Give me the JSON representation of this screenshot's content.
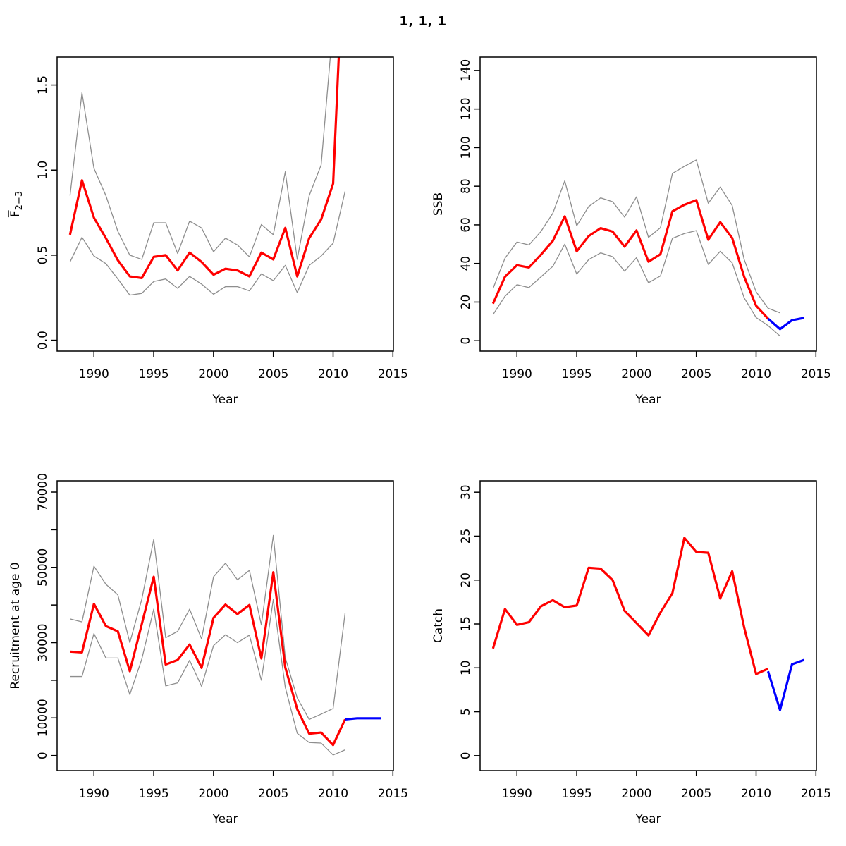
{
  "page": {
    "title": "1, 1, 1",
    "background": "#ffffff"
  },
  "colors": {
    "red": "#ff0000",
    "blue": "#0000ff",
    "gray": "#8e8e8e",
    "frame": "#000000",
    "text": "#000000"
  },
  "chart_data": [
    {
      "id": "fbar",
      "type": "line",
      "title": "",
      "xlabel": "Year",
      "ylabel": "F̅2−3",
      "ylabel_parts": {
        "main": "F",
        "overline": true,
        "sub": "2−3"
      },
      "xlim": [
        1986.92,
        2015.04
      ],
      "ylim": [
        -0.064,
        1.664
      ],
      "xticks": [
        1990,
        1995,
        2000,
        2005,
        2010,
        2015
      ],
      "xtick_labels": [
        "1990",
        "1995",
        "2000",
        "2005",
        "2010",
        "2015"
      ],
      "yticks": [
        0.0,
        0.5,
        1.0,
        1.5
      ],
      "ytick_labels": [
        "0.0",
        "0.5",
        "1.0",
        "1.5"
      ],
      "grid": false,
      "legend": null,
      "series": [
        {
          "name": "upper-ci",
          "role": "confidence-upper",
          "color_key": "gray",
          "width": 1.3,
          "start_year": 1988,
          "values": [
            0.85,
            1.455,
            1.01,
            0.85,
            0.64,
            0.5,
            0.475,
            0.69,
            0.69,
            0.51,
            0.7,
            0.66,
            0.52,
            0.6,
            0.56,
            0.49,
            0.68,
            0.62,
            0.99,
            0.475,
            0.85,
            1.03,
            1.86,
            4.0
          ]
        },
        {
          "name": "lower-ci",
          "role": "confidence-lower",
          "color_key": "gray",
          "width": 1.3,
          "start_year": 1988,
          "values": [
            0.46,
            0.605,
            0.495,
            0.45,
            0.36,
            0.265,
            0.275,
            0.345,
            0.36,
            0.305,
            0.375,
            0.33,
            0.27,
            0.315,
            0.315,
            0.29,
            0.39,
            0.35,
            0.44,
            0.28,
            0.44,
            0.495,
            0.57,
            0.875
          ]
        },
        {
          "name": "estimate",
          "role": "estimate",
          "color_key": "red",
          "width": 3.2,
          "start_year": 1988,
          "values": [
            0.62,
            0.94,
            0.72,
            0.6,
            0.47,
            0.375,
            0.365,
            0.49,
            0.5,
            0.41,
            0.515,
            0.46,
            0.385,
            0.42,
            0.41,
            0.375,
            0.515,
            0.475,
            0.66,
            0.375,
            0.6,
            0.71,
            0.92,
            2.5
          ]
        }
      ]
    },
    {
      "id": "ssb",
      "type": "line",
      "title": "",
      "xlabel": "Year",
      "ylabel": "SSB",
      "xlim": [
        1986.92,
        2015.04
      ],
      "ylim": [
        -5.4,
        146.9
      ],
      "xticks": [
        1990,
        1995,
        2000,
        2005,
        2010,
        2015
      ],
      "xtick_labels": [
        "1990",
        "1995",
        "2000",
        "2005",
        "2010",
        "2015"
      ],
      "yticks": [
        0,
        20,
        40,
        60,
        80,
        100,
        120,
        140
      ],
      "ytick_labels": [
        "0",
        "20",
        "40",
        "60",
        "80",
        "100",
        "120",
        "140"
      ],
      "grid": false,
      "legend": null,
      "series": [
        {
          "name": "upper-ci",
          "role": "confidence-upper",
          "color_key": "gray",
          "width": 1.3,
          "start_year": 1988,
          "values": [
            27,
            42.7,
            51.1,
            49.6,
            56.5,
            66,
            82.8,
            59.5,
            69.5,
            74,
            72,
            64,
            74.5,
            53.5,
            58.5,
            86.6,
            90.3,
            93.6,
            71.2,
            79.6,
            70,
            42.1,
            25.3,
            16.8,
            14.4
          ]
        },
        {
          "name": "lower-ci",
          "role": "confidence-lower",
          "color_key": "gray",
          "width": 1.3,
          "start_year": 1988,
          "values": [
            13.5,
            23,
            29,
            27.5,
            33,
            38.5,
            50,
            34.5,
            42,
            45.5,
            43.5,
            36,
            43,
            30,
            33.5,
            53,
            55.5,
            57,
            39.5,
            46.3,
            40.3,
            22.2,
            12,
            7.8,
            2.4
          ]
        },
        {
          "name": "estimate",
          "role": "estimate",
          "color_key": "red",
          "width": 3.2,
          "start_year": 1988,
          "values": [
            19.2,
            33.1,
            39.1,
            37.9,
            44.5,
            51.7,
            64.4,
            46.3,
            54.2,
            58.3,
            56.5,
            48.7,
            57.1,
            40.9,
            44.8,
            67,
            70.4,
            72.8,
            52.3,
            61.4,
            53.2,
            33.1,
            18.1,
            11.4
          ]
        },
        {
          "name": "forecast",
          "role": "forecast",
          "color_key": "blue",
          "width": 3.2,
          "start_year": 2011,
          "values": [
            11.4,
            6.0,
            10.6,
            11.8
          ]
        }
      ]
    },
    {
      "id": "recruitment",
      "type": "line",
      "title": "",
      "xlabel": "Year",
      "ylabel": "Recruitment at age 0",
      "xlim": [
        1986.92,
        2015.04
      ],
      "ylim": [
        -4000,
        73000
      ],
      "xticks": [
        1990,
        1995,
        2000,
        2005,
        2010,
        2015
      ],
      "xtick_labels": [
        "1990",
        "1995",
        "2000",
        "2005",
        "2010",
        "2015"
      ],
      "yticks": [
        0,
        10000,
        20000,
        30000,
        40000,
        50000,
        60000,
        70000
      ],
      "ytick_labels": [
        "0",
        "10000",
        "",
        "30000",
        "",
        "50000",
        "",
        "70000"
      ],
      "grid": false,
      "legend": null,
      "series": [
        {
          "name": "upper-ci",
          "role": "confidence-upper",
          "color_key": "gray",
          "width": 1.3,
          "start_year": 1988,
          "values": [
            36300,
            35500,
            50300,
            45500,
            42700,
            30000,
            41500,
            57400,
            31300,
            33000,
            38900,
            31000,
            47500,
            51100,
            46700,
            49200,
            34700,
            58500,
            26000,
            15300,
            9600,
            11000,
            12500,
            37800
          ]
        },
        {
          "name": "lower-ci",
          "role": "confidence-lower",
          "color_key": "gray",
          "width": 1.3,
          "start_year": 1988,
          "values": [
            21000,
            21000,
            32400,
            25900,
            25900,
            16200,
            25600,
            38900,
            18500,
            19300,
            25300,
            18400,
            29200,
            32100,
            30000,
            32000,
            20000,
            41500,
            18100,
            5900,
            3450,
            3300,
            130,
            1500
          ]
        },
        {
          "name": "estimate",
          "role": "estimate",
          "color_key": "red",
          "width": 3.2,
          "start_year": 1988,
          "values": [
            27600,
            27400,
            40300,
            34400,
            33000,
            22400,
            34900,
            47500,
            24200,
            25400,
            29500,
            23300,
            36600,
            40100,
            37600,
            40000,
            25800,
            48700,
            23400,
            12300,
            5800,
            6100,
            2800,
            9600
          ]
        },
        {
          "name": "forecast",
          "role": "forecast",
          "color_key": "blue",
          "width": 3.2,
          "start_year": 2011,
          "values": [
            9600,
            9900,
            9900,
            9900
          ]
        }
      ]
    },
    {
      "id": "catch",
      "type": "line",
      "title": "",
      "xlabel": "Year",
      "ylabel": "Catch",
      "xlim": [
        1986.92,
        2015.04
      ],
      "ylim": [
        -1.7,
        31.3
      ],
      "xticks": [
        1990,
        1995,
        2000,
        2005,
        2010,
        2015
      ],
      "xtick_labels": [
        "1990",
        "1995",
        "2000",
        "2005",
        "2010",
        "2015"
      ],
      "yticks": [
        0,
        5,
        10,
        15,
        20,
        25,
        30
      ],
      "ytick_labels": [
        "0",
        "5",
        "10",
        "15",
        "20",
        "25",
        "30"
      ],
      "grid": false,
      "legend": null,
      "series": [
        {
          "name": "estimate",
          "role": "estimate",
          "color_key": "red",
          "width": 3.2,
          "start_year": 1988,
          "values": [
            12.2,
            16.7,
            14.9,
            15.2,
            17.0,
            17.7,
            16.9,
            17.1,
            21.4,
            21.3,
            20.0,
            16.5,
            15.1,
            13.7,
            16.3,
            18.5,
            24.8,
            23.2,
            23.1,
            17.9,
            21.0,
            14.6,
            9.3,
            9.9
          ]
        },
        {
          "name": "forecast",
          "role": "forecast",
          "color_key": "blue",
          "width": 3.2,
          "start_year": 2011,
          "values": [
            9.6,
            5.2,
            10.4,
            10.9
          ]
        }
      ]
    }
  ]
}
